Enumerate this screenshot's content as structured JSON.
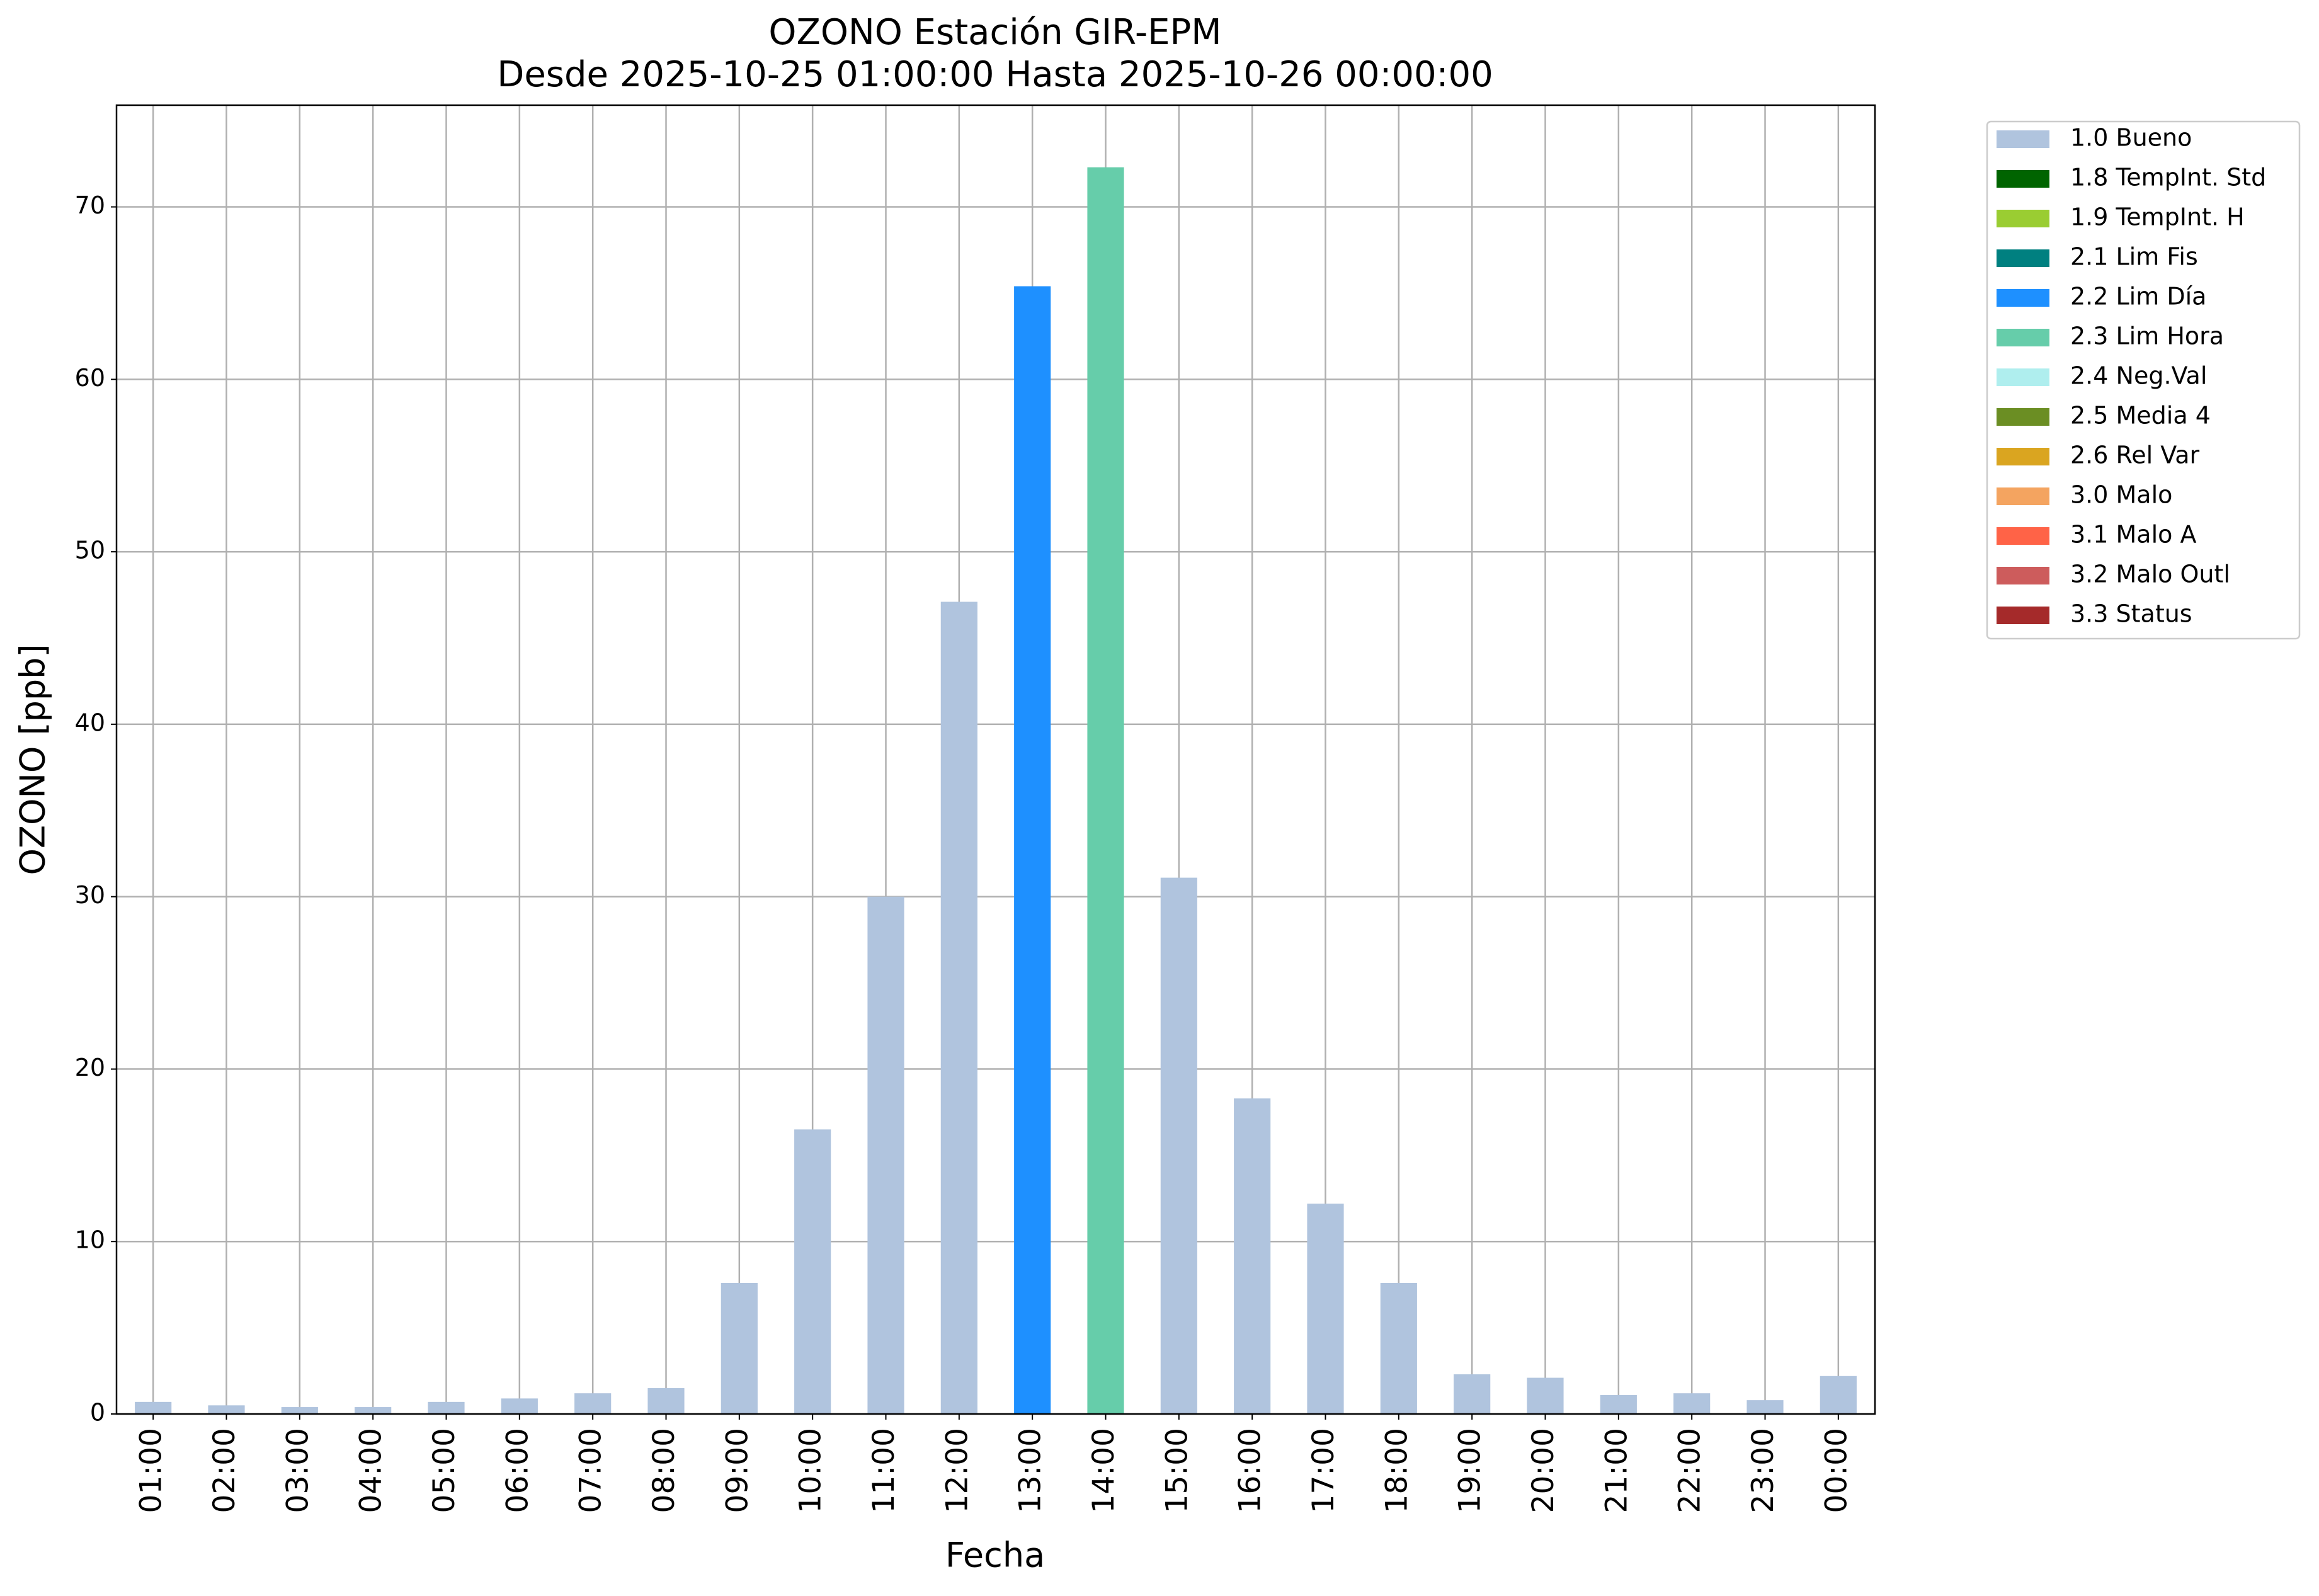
{
  "chart_data": {
    "type": "bar",
    "stacked": true,
    "title": "OZONO Estación GIR-EPM",
    "subtitle": "Desde 2025-10-25 01:00:00 Hasta 2025-10-26 00:00:00",
    "x_label": "Fecha",
    "y_label": "OZONO [ppb]",
    "categories": [
      "01:00",
      "02:00",
      "03:00",
      "04:00",
      "05:00",
      "06:00",
      "07:00",
      "08:00",
      "09:00",
      "10:00",
      "11:00",
      "12:00",
      "13:00",
      "14:00",
      "15:00",
      "16:00",
      "17:00",
      "18:00",
      "19:00",
      "20:00",
      "21:00",
      "22:00",
      "23:00",
      "00:00"
    ],
    "ylim": [
      0,
      75.9
    ],
    "yticks": [
      0,
      10,
      20,
      30,
      40,
      50,
      60,
      70
    ],
    "grid": true,
    "legend": "outside-right",
    "series": [
      {
        "name": "1.0 Bueno",
        "color": "#b0c4de",
        "values": [
          0.7,
          0.5,
          0.4,
          0.4,
          0.7,
          0.9,
          1.2,
          1.5,
          7.6,
          16.5,
          30.0,
          47.1,
          null,
          null,
          31.1,
          18.3,
          12.2,
          7.6,
          2.3,
          2.1,
          1.1,
          1.2,
          0.8,
          2.2
        ]
      },
      {
        "name": "1.8 TempInt. Std",
        "color": "#006400",
        "values": [
          null,
          null,
          null,
          null,
          null,
          null,
          null,
          null,
          null,
          null,
          null,
          null,
          null,
          null,
          null,
          null,
          null,
          null,
          null,
          null,
          null,
          null,
          null,
          null
        ]
      },
      {
        "name": "1.9 TempInt. H",
        "color": "#9acd32",
        "values": [
          null,
          null,
          null,
          null,
          null,
          null,
          null,
          null,
          null,
          null,
          null,
          null,
          null,
          null,
          null,
          null,
          null,
          null,
          null,
          null,
          null,
          null,
          null,
          null
        ]
      },
      {
        "name": "2.1 Lim Fis",
        "color": "#008080",
        "values": [
          null,
          null,
          null,
          null,
          null,
          null,
          null,
          null,
          null,
          null,
          null,
          null,
          null,
          null,
          null,
          null,
          null,
          null,
          null,
          null,
          null,
          null,
          null,
          null
        ]
      },
      {
        "name": "2.2 Lim Día",
        "color": "#1e90ff",
        "values": [
          null,
          null,
          null,
          null,
          null,
          null,
          null,
          null,
          null,
          null,
          null,
          null,
          65.4,
          null,
          null,
          null,
          null,
          null,
          null,
          null,
          null,
          null,
          null,
          null
        ]
      },
      {
        "name": "2.3 Lim Hora",
        "color": "#66cdaa",
        "values": [
          null,
          null,
          null,
          null,
          null,
          null,
          null,
          null,
          null,
          null,
          null,
          null,
          null,
          72.3,
          null,
          null,
          null,
          null,
          null,
          null,
          null,
          null,
          null,
          null
        ]
      },
      {
        "name": "2.4 Neg.Val",
        "color": "#afeeee",
        "values": [
          null,
          null,
          null,
          null,
          null,
          null,
          null,
          null,
          null,
          null,
          null,
          null,
          null,
          null,
          null,
          null,
          null,
          null,
          null,
          null,
          null,
          null,
          null,
          null
        ]
      },
      {
        "name": "2.5 Media 4",
        "color": "#6b8e23",
        "values": [
          null,
          null,
          null,
          null,
          null,
          null,
          null,
          null,
          null,
          null,
          null,
          null,
          null,
          null,
          null,
          null,
          null,
          null,
          null,
          null,
          null,
          null,
          null,
          null
        ]
      },
      {
        "name": "2.6 Rel Var",
        "color": "#daa520",
        "values": [
          null,
          null,
          null,
          null,
          null,
          null,
          null,
          null,
          null,
          null,
          null,
          null,
          null,
          null,
          null,
          null,
          null,
          null,
          null,
          null,
          null,
          null,
          null,
          null
        ]
      },
      {
        "name": "3.0 Malo",
        "color": "#f4a460",
        "values": [
          null,
          null,
          null,
          null,
          null,
          null,
          null,
          null,
          null,
          null,
          null,
          null,
          null,
          null,
          null,
          null,
          null,
          null,
          null,
          null,
          null,
          null,
          null,
          null
        ]
      },
      {
        "name": "3.1 Malo A",
        "color": "#ff6347",
        "values": [
          null,
          null,
          null,
          null,
          null,
          null,
          null,
          null,
          null,
          null,
          null,
          null,
          null,
          null,
          null,
          null,
          null,
          null,
          null,
          null,
          null,
          null,
          null,
          null
        ]
      },
      {
        "name": "3.2 Malo Outl",
        "color": "#cd5c5c",
        "values": [
          null,
          null,
          null,
          null,
          null,
          null,
          null,
          null,
          null,
          null,
          null,
          null,
          null,
          null,
          null,
          null,
          null,
          null,
          null,
          null,
          null,
          null,
          null,
          null
        ]
      },
      {
        "name": "3.3 Status",
        "color": "#a52a2a",
        "values": [
          null,
          null,
          null,
          null,
          null,
          null,
          null,
          null,
          null,
          null,
          null,
          null,
          null,
          null,
          null,
          null,
          null,
          null,
          null,
          null,
          null,
          null,
          null,
          null
        ]
      }
    ]
  }
}
